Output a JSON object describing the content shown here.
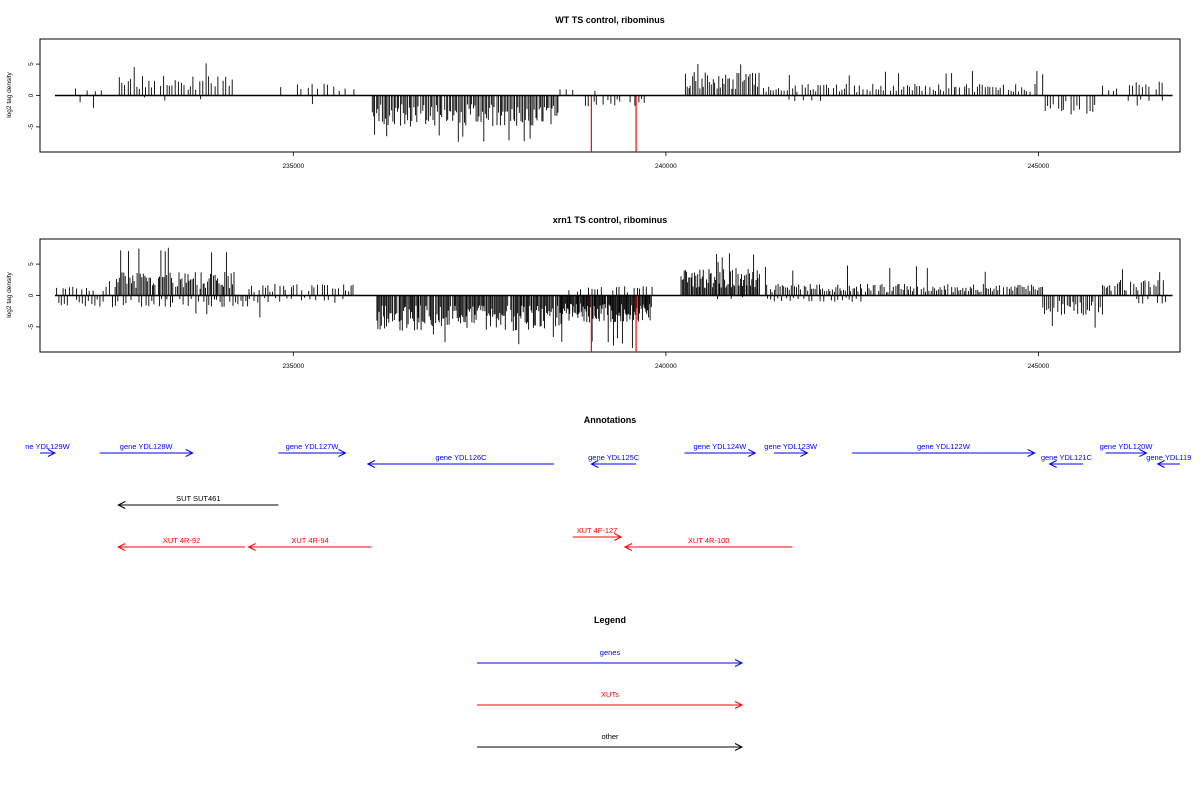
{
  "chart_data": [
    {
      "type": "bar",
      "title": "WT TS control, ribominus",
      "xlabel": "",
      "ylabel": "log2 tag density",
      "xlim": [
        231600,
        246900
      ],
      "ylim": [
        -9,
        9
      ],
      "xticks": [
        235000,
        240000,
        245000
      ],
      "yticks": [
        -5,
        0,
        5
      ],
      "baseline": {
        "x_start": 231800,
        "x_end": 246800,
        "y": 0
      },
      "regions": [
        {
          "x_start": 231950,
          "x_end": 232550,
          "sign": 1,
          "typ": 1.0,
          "max": 2.5,
          "step": 90,
          "fill": 0.5
        },
        {
          "x_start": 232100,
          "x_end": 232500,
          "sign": -1,
          "typ": 1.0,
          "max": 2.5,
          "step": 100,
          "fill": 0.5
        },
        {
          "x_start": 232650,
          "x_end": 234200,
          "sign": 1,
          "typ": 2.5,
          "max": 6.0,
          "step": 40,
          "fill": 0.85
        },
        {
          "x_start": 233000,
          "x_end": 234000,
          "sign": -1,
          "typ": 0.8,
          "max": 2.0,
          "step": 90,
          "fill": 0.4
        },
        {
          "x_start": 234750,
          "x_end": 235800,
          "sign": 1,
          "typ": 1.5,
          "max": 3.0,
          "step": 70,
          "fill": 0.55
        },
        {
          "x_start": 234900,
          "x_end": 235300,
          "sign": -1,
          "typ": 0.8,
          "max": 1.5,
          "step": 110,
          "fill": 0.4
        },
        {
          "x_start": 236050,
          "x_end": 238550,
          "sign": -1,
          "typ": 4.0,
          "max": 7.5,
          "step": 20,
          "fill": 0.95
        },
        {
          "x_start": 238550,
          "x_end": 239100,
          "sign": 1,
          "typ": 0.9,
          "max": 2.5,
          "step": 80,
          "fill": 0.5
        },
        {
          "x_start": 238900,
          "x_end": 239700,
          "sign": -1,
          "typ": 1.5,
          "max": 3.0,
          "step": 40,
          "fill": 0.8
        },
        {
          "x_start": 240250,
          "x_end": 241250,
          "sign": 1,
          "typ": 3.0,
          "max": 5.5,
          "step": 25,
          "fill": 0.95
        },
        {
          "x_start": 241300,
          "x_end": 245050,
          "sign": 1,
          "typ": 1.5,
          "max": 4.0,
          "step": 35,
          "fill": 0.85
        },
        {
          "x_start": 241500,
          "x_end": 242200,
          "sign": -1,
          "typ": 0.8,
          "max": 2.0,
          "step": 110,
          "fill": 0.4
        },
        {
          "x_start": 245050,
          "x_end": 245750,
          "sign": -1,
          "typ": 2.5,
          "max": 4.8,
          "step": 35,
          "fill": 0.9
        },
        {
          "x_start": 245850,
          "x_end": 246700,
          "sign": 1,
          "typ": 1.8,
          "max": 3.5,
          "step": 45,
          "fill": 0.75
        },
        {
          "x_start": 246100,
          "x_end": 246750,
          "sign": -1,
          "typ": 0.9,
          "max": 2.0,
          "step": 90,
          "fill": 0.5
        }
      ],
      "highlight": [
        {
          "x": 239000,
          "y": -9
        },
        {
          "x": 239600,
          "y": -9
        }
      ],
      "colors": {
        "bars": "#000000",
        "highlight": "#ff0000"
      }
    },
    {
      "type": "bar",
      "title": "xrn1 TS control, ribominus",
      "xlabel": "",
      "ylabel": "log2 tag density",
      "xlim": [
        231600,
        246900
      ],
      "ylim": [
        -9,
        9
      ],
      "xticks": [
        235000,
        240000,
        245000
      ],
      "yticks": [
        -5,
        0,
        5
      ],
      "baseline": {
        "x_start": 231800,
        "x_end": 246800,
        "y": 0
      },
      "regions": [
        {
          "x_start": 231800,
          "x_end": 232600,
          "sign": 1,
          "typ": 1.2,
          "max": 3.0,
          "step": 45,
          "fill": 0.7
        },
        {
          "x_start": 231800,
          "x_end": 232600,
          "sign": -1,
          "typ": 1.5,
          "max": 3.5,
          "step": 40,
          "fill": 0.7
        },
        {
          "x_start": 232600,
          "x_end": 234200,
          "sign": 1,
          "typ": 3.0,
          "max": 8.0,
          "step": 20,
          "fill": 0.95
        },
        {
          "x_start": 232600,
          "x_end": 234400,
          "sign": -1,
          "typ": 1.5,
          "max": 3.5,
          "step": 35,
          "fill": 0.75
        },
        {
          "x_start": 234400,
          "x_end": 235800,
          "sign": 1,
          "typ": 1.5,
          "max": 4.5,
          "step": 35,
          "fill": 0.7
        },
        {
          "x_start": 234400,
          "x_end": 235700,
          "sign": -1,
          "typ": 1.0,
          "max": 4.0,
          "step": 50,
          "fill": 0.6
        },
        {
          "x_start": 236100,
          "x_end": 238600,
          "sign": -1,
          "typ": 4.5,
          "max": 8.0,
          "step": 15,
          "fill": 0.97
        },
        {
          "x_start": 238600,
          "x_end": 239800,
          "sign": 1,
          "typ": 1.2,
          "max": 3.5,
          "step": 40,
          "fill": 0.7
        },
        {
          "x_start": 238600,
          "x_end": 239800,
          "sign": -1,
          "typ": 3.5,
          "max": 8.5,
          "step": 12,
          "fill": 0.97
        },
        {
          "x_start": 240200,
          "x_end": 241250,
          "sign": 1,
          "typ": 3.5,
          "max": 7.0,
          "step": 15,
          "fill": 0.97
        },
        {
          "x_start": 240300,
          "x_end": 241100,
          "sign": -1,
          "typ": 0.5,
          "max": 1.5,
          "step": 90,
          "fill": 0.4
        },
        {
          "x_start": 241300,
          "x_end": 245050,
          "sign": 1,
          "typ": 1.5,
          "max": 5.0,
          "step": 25,
          "fill": 0.9
        },
        {
          "x_start": 241300,
          "x_end": 242600,
          "sign": -1,
          "typ": 0.8,
          "max": 3.0,
          "step": 50,
          "fill": 0.55
        },
        {
          "x_start": 245050,
          "x_end": 245850,
          "sign": -1,
          "typ": 2.5,
          "max": 5.5,
          "step": 25,
          "fill": 0.9
        },
        {
          "x_start": 245850,
          "x_end": 246700,
          "sign": 1,
          "typ": 2.0,
          "max": 4.5,
          "step": 25,
          "fill": 0.85
        },
        {
          "x_start": 246300,
          "x_end": 246800,
          "sign": -1,
          "typ": 1.2,
          "max": 3.0,
          "step": 40,
          "fill": 0.7
        }
      ],
      "highlight": [
        {
          "x": 239000,
          "y": -9
        },
        {
          "x": 239600,
          "y": -9
        }
      ],
      "colors": {
        "bars": "#000000",
        "highlight": "#ff0000"
      }
    }
  ],
  "annotations": {
    "title": "Annotations",
    "xlim": [
      231600,
      246900
    ],
    "features": [
      {
        "label": "ne YDL129W",
        "start": 231600,
        "end": 231800,
        "dir": "right",
        "row": 1,
        "kind": "gene"
      },
      {
        "label": "gene YDL128W",
        "start": 232400,
        "end": 233650,
        "dir": "right",
        "row": 1,
        "kind": "gene"
      },
      {
        "label": "gene YDL127W",
        "start": 234800,
        "end": 235700,
        "dir": "right",
        "row": 1,
        "kind": "gene"
      },
      {
        "label": "gene YDL126C",
        "start": 236000,
        "end": 238500,
        "dir": "left",
        "row": 2,
        "kind": "gene"
      },
      {
        "label": "gene YDL125C",
        "start": 239000,
        "end": 239600,
        "dir": "left",
        "row": 2,
        "kind": "gene"
      },
      {
        "label": "gene YDL124W",
        "start": 240250,
        "end": 241200,
        "dir": "right",
        "row": 1,
        "kind": "gene"
      },
      {
        "label": "gene YDL123W",
        "start": 241450,
        "end": 241900,
        "dir": "right",
        "row": 1,
        "kind": "gene"
      },
      {
        "label": "gene YDL122W",
        "start": 242500,
        "end": 244950,
        "dir": "right",
        "row": 1,
        "kind": "gene"
      },
      {
        "label": "gene YDL121C",
        "start": 245150,
        "end": 245600,
        "dir": "left",
        "row": 2,
        "kind": "gene"
      },
      {
        "label": "gene YDL120W",
        "start": 245900,
        "end": 246450,
        "dir": "right",
        "row": 1,
        "kind": "gene"
      },
      {
        "label": "gene YDL119",
        "start": 246600,
        "end": 246900,
        "dir": "left",
        "row": 2,
        "kind": "gene"
      },
      {
        "label": "SUT SUT461",
        "start": 232650,
        "end": 234800,
        "dir": "left",
        "row": 3,
        "kind": "other"
      },
      {
        "label": "XUT 4R-92",
        "start": 232650,
        "end": 234350,
        "dir": "left",
        "row": 4,
        "kind": "xut"
      },
      {
        "label": "XUT 4R-94",
        "start": 234400,
        "end": 236050,
        "dir": "left",
        "row": 4,
        "kind": "xut"
      },
      {
        "label": "XUT 4F-127",
        "start": 238750,
        "end": 239400,
        "dir": "right",
        "row": 5,
        "kind": "xut"
      },
      {
        "label": "XUT 4R-100",
        "start": 239450,
        "end": 241700,
        "dir": "left",
        "row": 4,
        "kind": "xut"
      }
    ]
  },
  "legend": {
    "title": "Legend",
    "entries": [
      {
        "label": "genes",
        "kind": "gene"
      },
      {
        "label": "XUTs",
        "kind": "xut"
      },
      {
        "label": "other",
        "kind": "other"
      }
    ]
  },
  "colors": {
    "gene": "#0000ff",
    "xut": "#ff0000",
    "other": "#000000",
    "axis": "#000000"
  }
}
